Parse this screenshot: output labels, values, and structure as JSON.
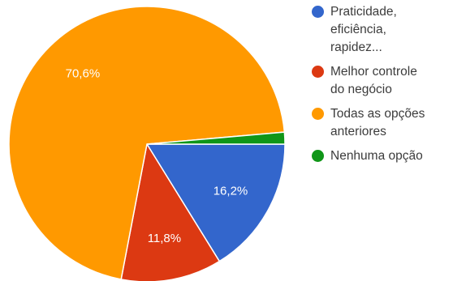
{
  "chart_data": {
    "type": "pie",
    "title": "",
    "legend_position": "right",
    "start_angle_deg": 0,
    "direction": "clockwise",
    "slices": [
      {
        "label": "Praticidade,\neficiência,\nrapidez...",
        "value": 16.2,
        "data_label": "16,2%",
        "color": "#3366cc"
      },
      {
        "label": "Melhor controle\ndo negócio",
        "value": 11.8,
        "data_label": "11,8%",
        "color": "#dc3912"
      },
      {
        "label": "Todas as opções\nanteriores",
        "value": 70.6,
        "data_label": "70,6%",
        "color": "#ff9900"
      },
      {
        "label": "Nenhuma opção",
        "value": 1.4,
        "data_label": "",
        "color": "#109618"
      }
    ]
  }
}
